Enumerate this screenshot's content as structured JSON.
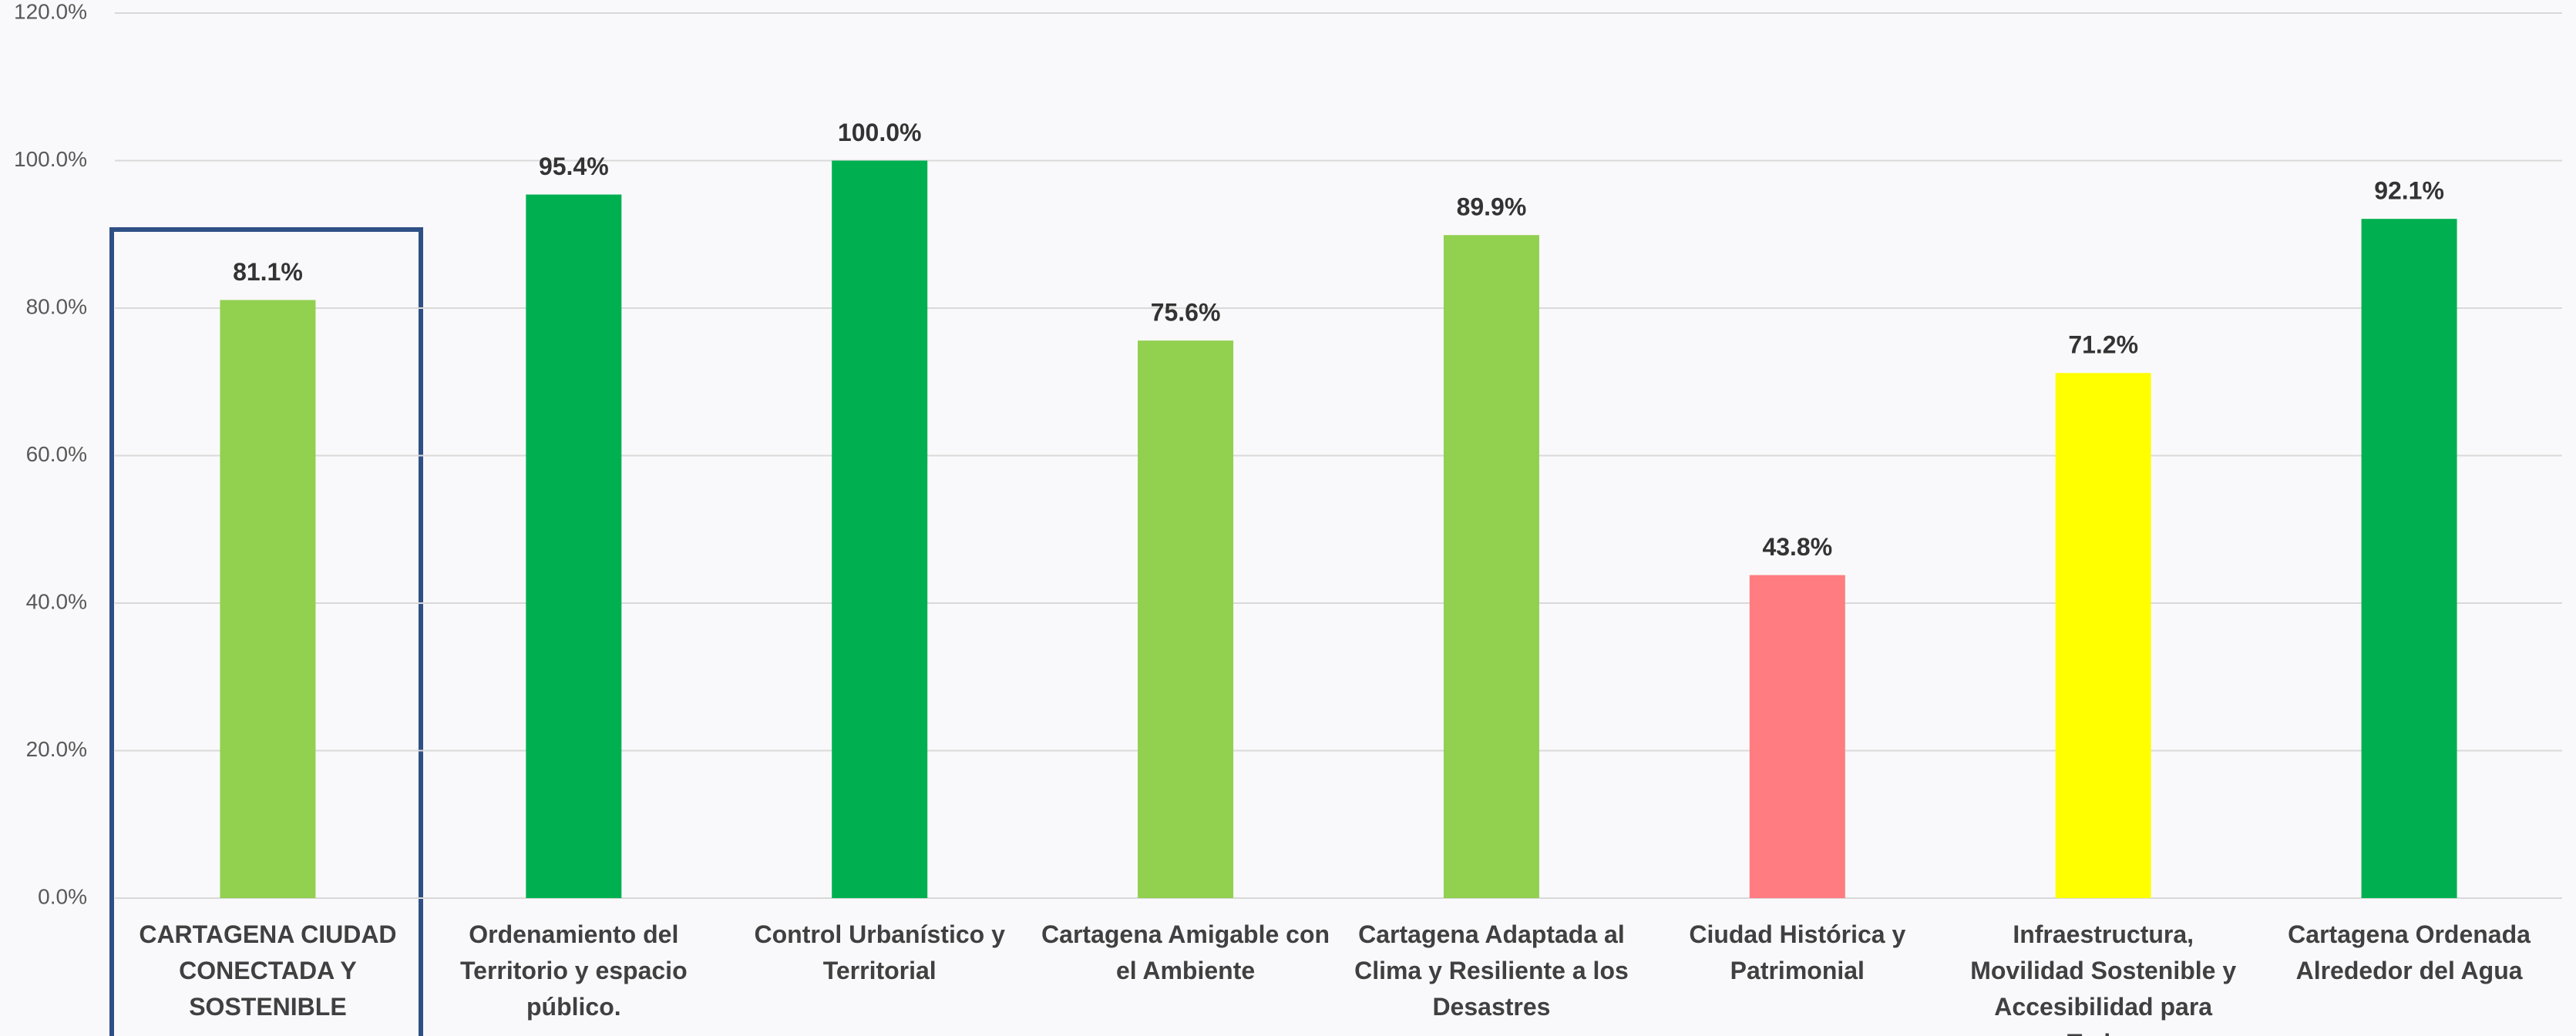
{
  "chart_data": {
    "type": "bar",
    "categories": [
      "CARTAGENA CIUDAD CONECTADA Y SOSTENIBLE",
      "Ordenamiento del Territorio y espacio público.",
      "Control Urbanístico y Territorial",
      "Cartagena Amigable con el Ambiente",
      "Cartagena Adaptada al Clima y Resiliente a los Desastres",
      "Ciudad Histórica y Patrimonial",
      "Infraestructura, Movilidad Sostenible y Accesibilidad para Todos",
      "Cartagena Ordenada Alrededor del Agua"
    ],
    "values": [
      81.1,
      95.4,
      100.0,
      75.6,
      89.9,
      43.8,
      71.2,
      92.1
    ],
    "value_labels": [
      "81.1%",
      "95.4%",
      "100.0%",
      "75.6%",
      "89.9%",
      "43.8%",
      "71.2%",
      "92.1%"
    ],
    "colors": [
      "#92d050",
      "#00b050",
      "#00b050",
      "#92d050",
      "#92d050",
      "#ff7c80",
      "#ffff00",
      "#00b050"
    ],
    "ylim": [
      0,
      120
    ],
    "yticks": [
      {
        "value": 0,
        "label": "0.0%"
      },
      {
        "value": 20,
        "label": "20.0%"
      },
      {
        "value": 40,
        "label": "40.0%"
      },
      {
        "value": 60,
        "label": "60.0%"
      },
      {
        "value": 80,
        "label": "80.0%"
      },
      {
        "value": 100,
        "label": "100.0%"
      },
      {
        "value": 120,
        "label": "120.0%"
      }
    ],
    "grid": true
  }
}
